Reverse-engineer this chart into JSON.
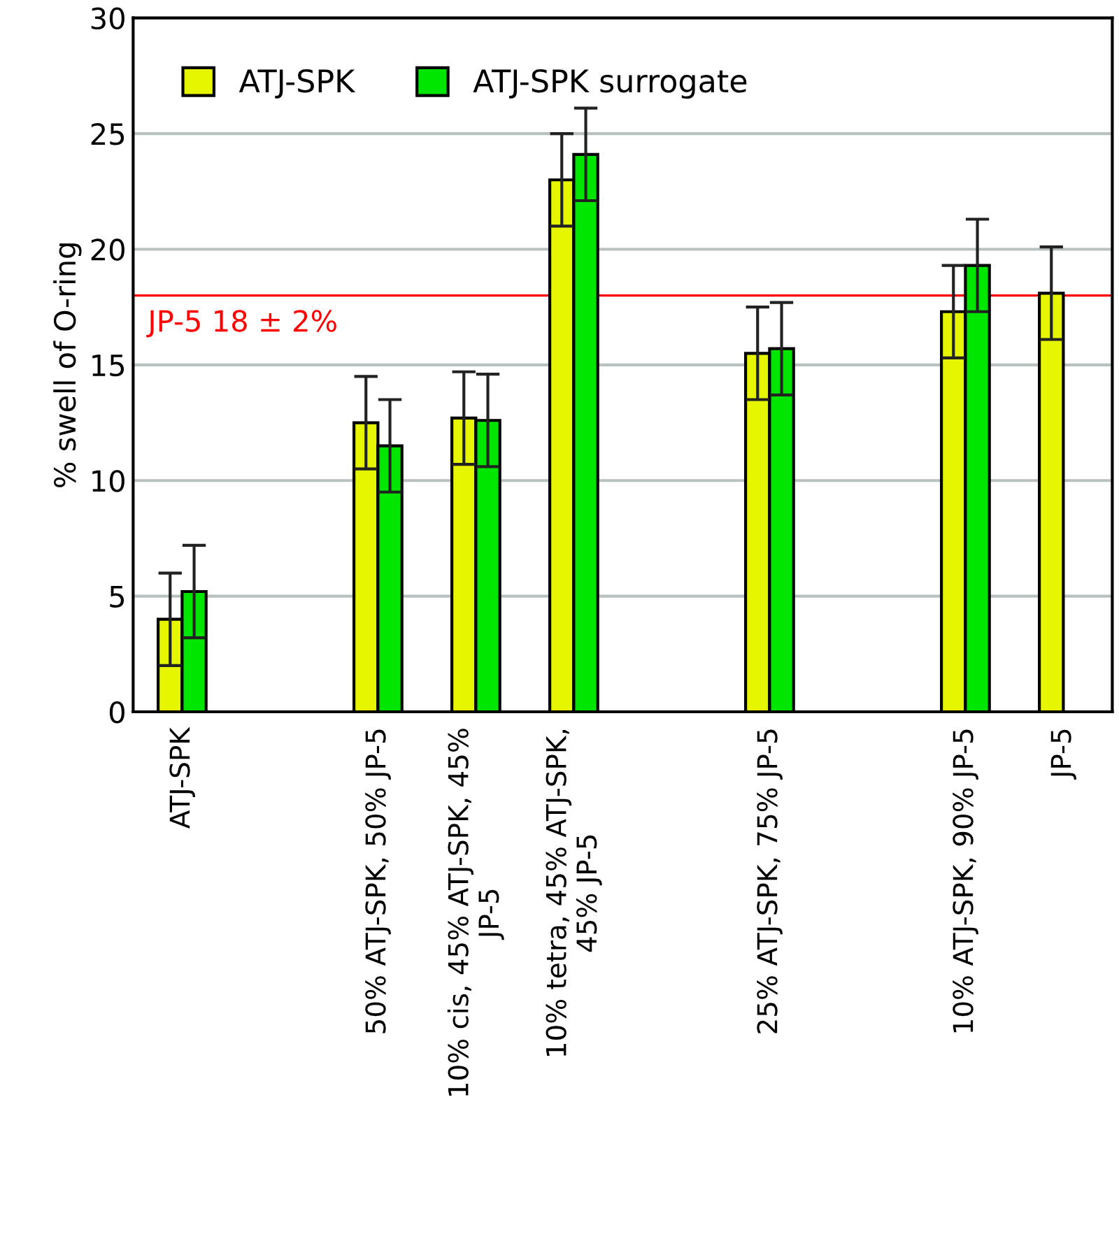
{
  "chart_data": {
    "type": "bar",
    "ylabel": "% swell of O-ring",
    "categories": [
      "ATJ-SPK",
      null,
      "50% ATJ-SPK, 50% JP-5",
      "10% cis, 45% ATJ-SPK, 45%\nJP-5",
      "10% tetra, 45% ATJ-SPK,\n45% JP-5",
      null,
      "25% ATJ-SPK, 75% JP-5",
      null,
      "10% ATJ-SPK, 90% JP-5",
      "JP-5"
    ],
    "series": [
      {
        "name": "ATJ-SPK",
        "color": "#e6f500",
        "values": [
          4.0,
          null,
          12.5,
          12.7,
          23.0,
          null,
          15.5,
          null,
          17.3,
          18.1
        ],
        "errors": [
          2,
          null,
          2,
          2,
          2,
          null,
          2,
          null,
          2,
          2
        ]
      },
      {
        "name": "ATJ-SPK surrogate",
        "color": "#00e600",
        "values": [
          5.2,
          null,
          11.5,
          12.6,
          24.1,
          null,
          15.7,
          null,
          19.3,
          null
        ],
        "errors": [
          2,
          null,
          2,
          2,
          2,
          null,
          2,
          null,
          2,
          null
        ]
      }
    ],
    "ylim": [
      0,
      30
    ],
    "yticks": [
      0,
      5,
      10,
      15,
      20,
      25,
      30
    ],
    "grid": "y",
    "legend": "top left",
    "ref_lines": [
      {
        "axis": "y",
        "value": 18,
        "label": "JP-5 18 ± 2%",
        "color": "#ff0000"
      }
    ]
  }
}
